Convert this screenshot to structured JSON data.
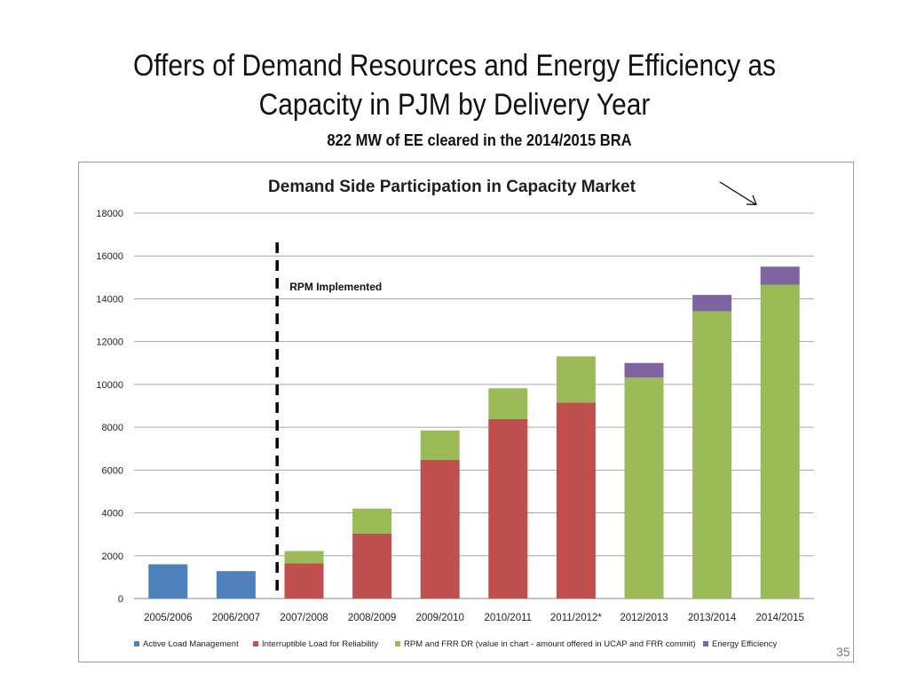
{
  "slide": {
    "title_line1": "Offers of Demand Resources and Energy Efficiency as",
    "title_line2": "Capacity in PJM by Delivery Year",
    "subtitle": "822 MW of EE cleared in the 2014/2015 BRA",
    "page_number": "35"
  },
  "chart_data": {
    "type": "bar",
    "stacked": true,
    "title": "Demand Side Participation in Capacity Market",
    "xlabel": "",
    "ylabel": "",
    "ylim": [
      0,
      18000
    ],
    "yticks": [
      0,
      2000,
      4000,
      6000,
      8000,
      10000,
      12000,
      14000,
      16000,
      18000
    ],
    "grid": true,
    "legend_position": "bottom",
    "categories": [
      "2005/2006",
      "2006/2007",
      "2007/2008",
      "2008/2009",
      "2009/2010",
      "2010/2011",
      "2011/2012*",
      "2012/2013",
      "2013/2014",
      "2014/2015"
    ],
    "series": [
      {
        "name": "Active Load Management",
        "color": "#4f81bd",
        "values": [
          1600,
          1280,
          0,
          0,
          0,
          0,
          0,
          0,
          0,
          0
        ]
      },
      {
        "name": "Interruptible Load for Reliability",
        "color": "#c0504d",
        "values": [
          0,
          0,
          1650,
          3030,
          6470,
          8380,
          9150,
          0,
          0,
          0
        ]
      },
      {
        "name": "RPM and FRR DR (value in chart - amount offered in UCAP and FRR commit)",
        "color": "#9bbb59",
        "values": [
          0,
          0,
          570,
          1170,
          1380,
          1440,
          2160,
          10320,
          13420,
          14660
        ]
      },
      {
        "name": "Energy Efficiency",
        "color": "#8064a2",
        "values": [
          0,
          0,
          0,
          0,
          0,
          0,
          0,
          680,
          760,
          840
        ]
      }
    ],
    "annotations": [
      {
        "text": "RPM Implemented",
        "between": [
          "2006/2007",
          "2007/2008"
        ],
        "style": "dashed vertical line"
      }
    ]
  }
}
